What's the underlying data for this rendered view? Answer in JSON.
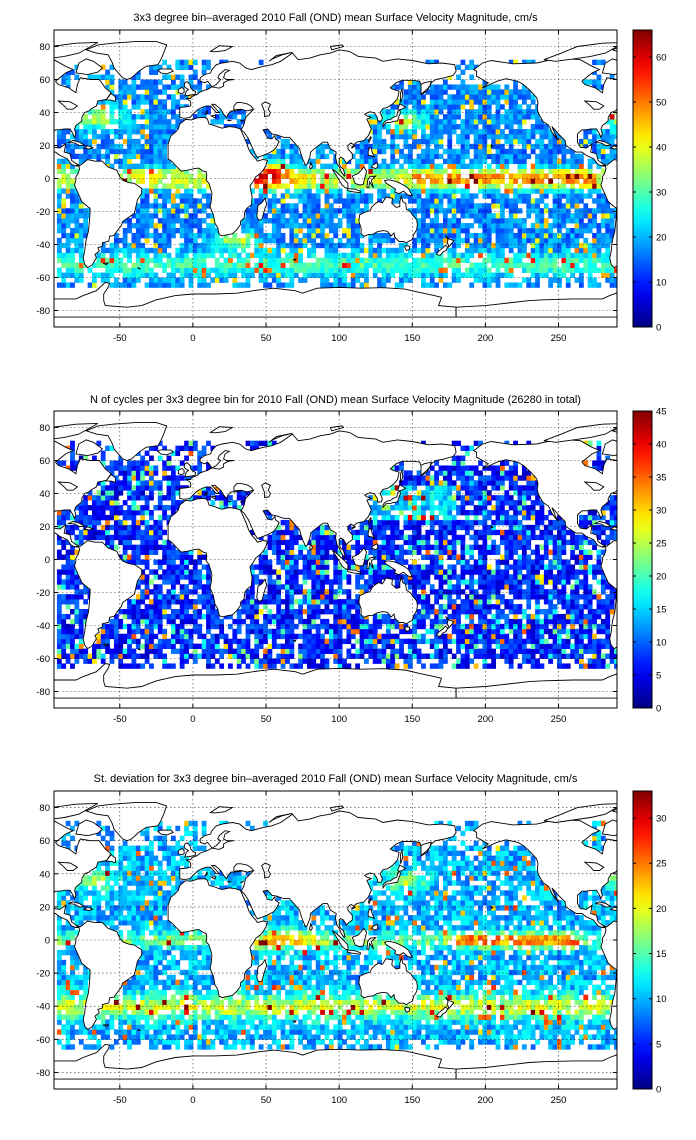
{
  "chart_data": [
    {
      "type": "heatmap",
      "title": "3x3 degree bin–averaged 2010 Fall (OND) mean Surface Velocity Magnitude, cm/s",
      "x_ticks": [
        -50,
        0,
        50,
        100,
        150,
        200,
        250
      ],
      "y_ticks": [
        80,
        60,
        40,
        20,
        0,
        -20,
        -40,
        -60,
        -80
      ],
      "xlim": [
        -95,
        290
      ],
      "ylim": [
        -90,
        90
      ],
      "colorbar": {
        "range": [
          0,
          66
        ],
        "ticks": [
          0,
          10,
          20,
          30,
          40,
          50,
          60
        ]
      },
      "colormap": "jet",
      "grid": true,
      "bin_size_deg": 3
    },
    {
      "type": "heatmap",
      "title": "N of cycles per 3x3 degree bin for 2010 Fall (OND) mean Surface Velocity Magnitude (26280 in total)",
      "x_ticks": [
        -50,
        0,
        50,
        100,
        150,
        200,
        250
      ],
      "y_ticks": [
        80,
        60,
        40,
        20,
        0,
        -20,
        -40,
        -60,
        -80
      ],
      "xlim": [
        -95,
        290
      ],
      "ylim": [
        -90,
        90
      ],
      "colorbar": {
        "range": [
          0,
          45
        ],
        "ticks": [
          0,
          5,
          10,
          15,
          20,
          25,
          30,
          35,
          40,
          45
        ]
      },
      "colormap": "jet",
      "grid": true,
      "bin_size_deg": 3
    },
    {
      "type": "heatmap",
      "title": "St. deviation for 3x3 degree bin–averaged 2010 Fall (OND) mean Surface Velocity Magnitude, cm/s",
      "x_ticks": [
        -50,
        0,
        50,
        100,
        150,
        200,
        250
      ],
      "y_ticks": [
        80,
        60,
        40,
        20,
        0,
        -20,
        -40,
        -60,
        -80
      ],
      "xlim": [
        -95,
        290
      ],
      "ylim": [
        -90,
        90
      ],
      "colorbar": {
        "range": [
          0,
          33
        ],
        "ticks": [
          0,
          5,
          10,
          15,
          20,
          25,
          30
        ]
      },
      "colormap": "jet",
      "grid": true,
      "bin_size_deg": 3
    }
  ]
}
